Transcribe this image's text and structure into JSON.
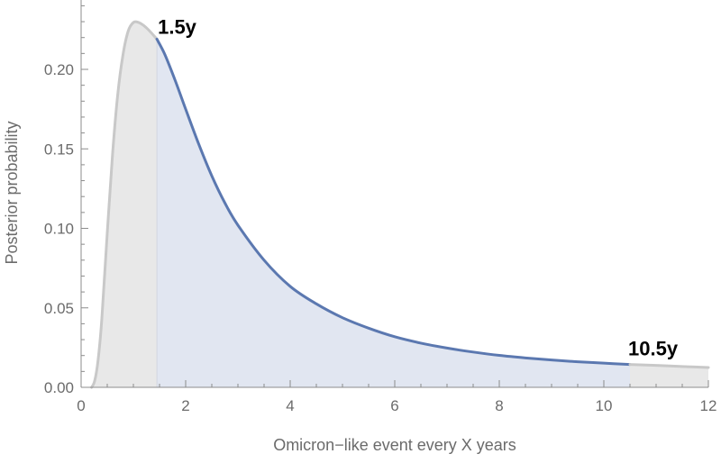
{
  "chart_data": {
    "type": "area",
    "xlabel": "Omicron−like event every X years",
    "ylabel": "Posterior probability",
    "xlim": [
      0,
      12
    ],
    "ylim": [
      0,
      0.25
    ],
    "x_ticks": [
      0,
      2,
      4,
      6,
      8,
      10,
      12
    ],
    "x_tick_labels": [
      "0",
      "2",
      "4",
      "6",
      "8",
      "10",
      "12"
    ],
    "y_ticks": [
      0.0,
      0.05,
      0.1,
      0.15,
      0.2
    ],
    "y_tick_labels": [
      "0.00",
      "0.05",
      "0.10",
      "0.15",
      "0.20"
    ],
    "grid": false,
    "series": [
      {
        "x": [
          0.2,
          0.25,
          0.3,
          0.35,
          0.4,
          0.5,
          0.6,
          0.7,
          0.8,
          0.9,
          1.0,
          1.1,
          1.2,
          1.3,
          1.45,
          1.6,
          1.8,
          2.0,
          2.25,
          2.5,
          2.75,
          3.0,
          3.5,
          4.0,
          4.5,
          5.0,
          5.5,
          6.0,
          6.5,
          7.0,
          7.5,
          8.0,
          8.5,
          9.0,
          9.5,
          10.0,
          10.5,
          11.0,
          11.5,
          12.0
        ],
        "values": [
          0.0,
          0.003,
          0.011,
          0.025,
          0.045,
          0.097,
          0.146,
          0.184,
          0.209,
          0.224,
          0.2295,
          0.2295,
          0.2275,
          0.2245,
          0.219,
          0.2095,
          0.193,
          0.175,
          0.153,
          0.133,
          0.116,
          0.102,
          0.08,
          0.0635,
          0.0525,
          0.0438,
          0.0372,
          0.0318,
          0.0278,
          0.0247,
          0.0222,
          0.0201,
          0.0185,
          0.0172,
          0.0161,
          0.0152,
          0.0144,
          0.0138,
          0.0131,
          0.0125
        ]
      }
    ],
    "interval": {
      "lower": 1.45,
      "upper": 10.5
    },
    "annotations": [
      {
        "text": "1.5y",
        "x": 1.45
      },
      {
        "text": "10.5y",
        "x": 10.5
      }
    ],
    "colors": {
      "highlight_line": "#5b78b0",
      "highlight_fill": "#e1e6f1",
      "outside_line": "#c8c8c8",
      "outside_fill": "#e8e8e8",
      "axis": "#8c8c8c",
      "text": "#6b6b6b"
    }
  }
}
